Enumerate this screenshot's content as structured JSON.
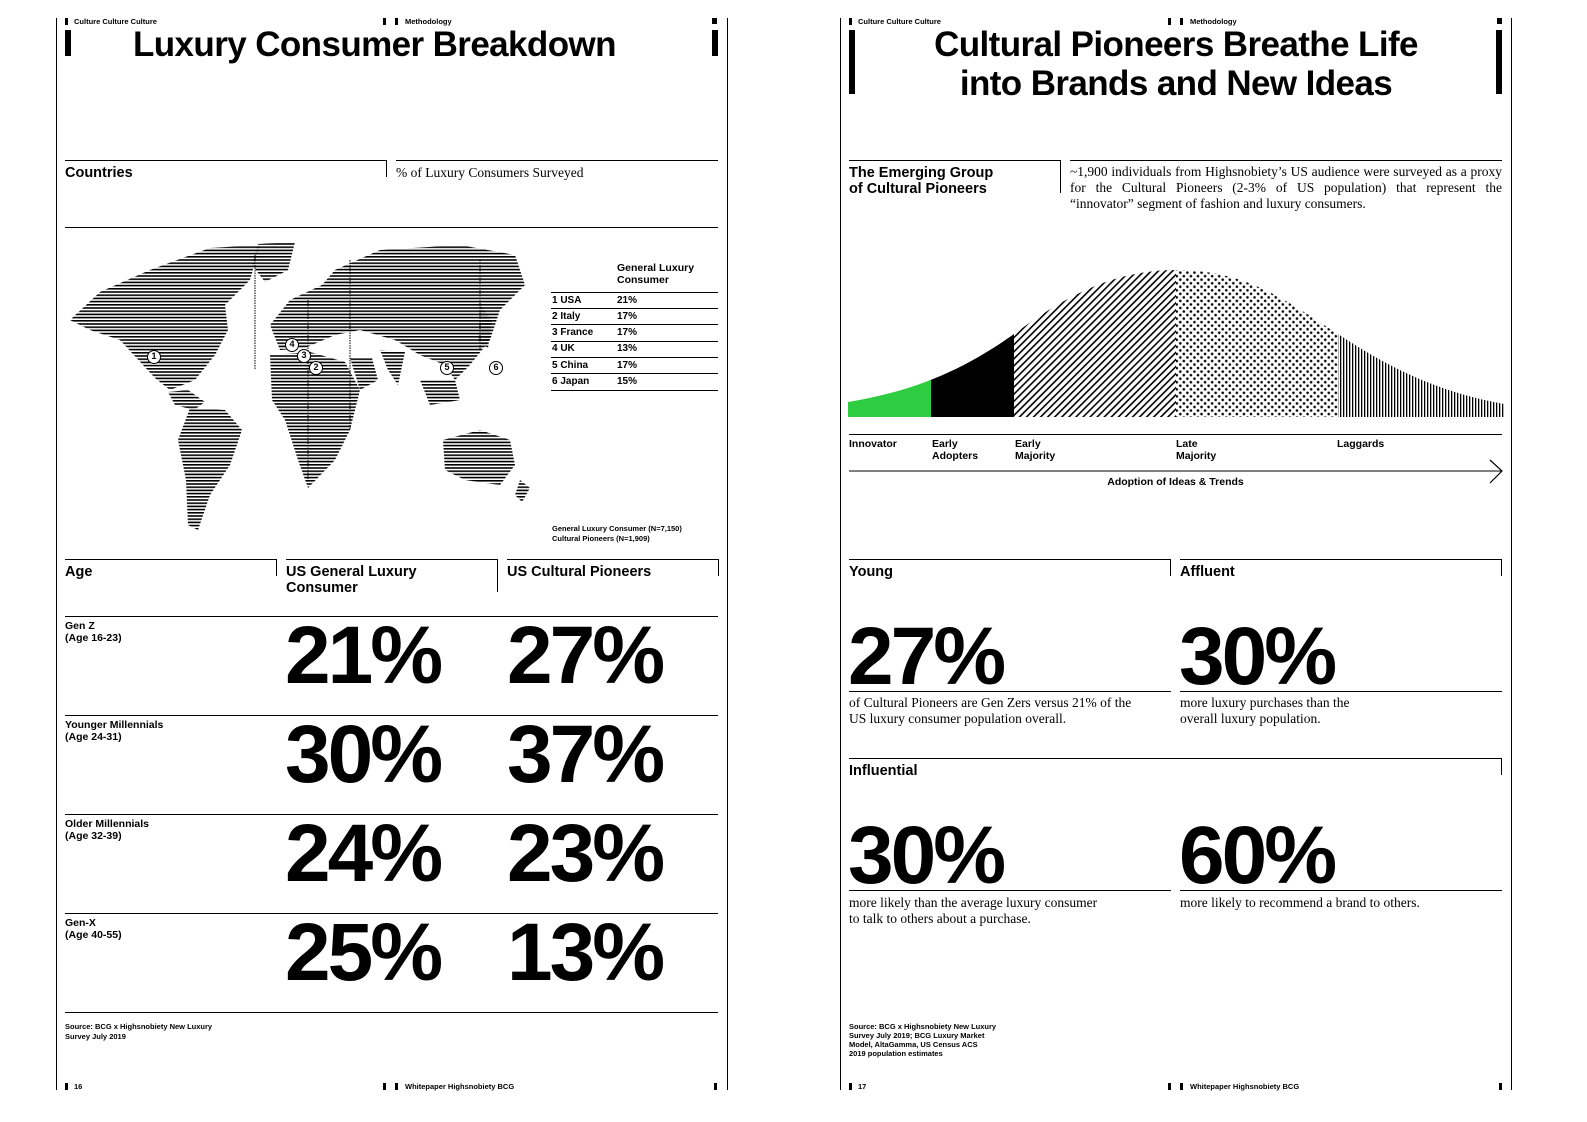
{
  "left": {
    "header": {
      "section": "Culture Culture Culture",
      "category": "Methodology",
      "title": "Luxury Consumer Breakdown"
    },
    "countries": {
      "heading": "Countries",
      "subheading": "% of Luxury Consumers Surveyed",
      "table_header": "General Luxury Consumer",
      "rows": [
        {
          "country": "1 USA",
          "value": "21%"
        },
        {
          "country": "2 Italy",
          "value": "17%"
        },
        {
          "country": "3 France",
          "value": "17%"
        },
        {
          "country": "4 UK",
          "value": "13%"
        },
        {
          "country": "5 China",
          "value": "17%"
        },
        {
          "country": "6 Japan",
          "value": "15%"
        }
      ],
      "markers": [
        "1",
        "2",
        "3",
        "4",
        "5",
        "6"
      ],
      "sample_note_1": "General Luxury Consumer (N=7,150)",
      "sample_note_2": "Cultural Pioneers (N=1,909)"
    },
    "age": {
      "heading": "Age",
      "col1": "US General Luxury Consumer",
      "col2": "US Cultural Pioneers",
      "rows": [
        {
          "name": "Gen Z",
          "range": "(Age 16-23)",
          "general": "21%",
          "pioneers": "27%"
        },
        {
          "name": "Younger Millennials",
          "range": "(Age 24-31)",
          "general": "30%",
          "pioneers": "37%"
        },
        {
          "name": "Older Millennials",
          "range": "(Age 32-39)",
          "general": "24%",
          "pioneers": "23%"
        },
        {
          "name": "Gen-X",
          "range": "(Age 40-55)",
          "general": "25%",
          "pioneers": "13%"
        }
      ]
    },
    "source_1": "Source: BCG x Highsnobiety New Luxury",
    "source_2": "Survey July 2019",
    "footer": {
      "page": "16",
      "publication": "Whitepaper Highsnobiety BCG"
    }
  },
  "right": {
    "header": {
      "section": "Culture Culture Culture",
      "category": "Methodology",
      "title_1": "Cultural Pioneers Breathe Life",
      "title_2": "into Brands and New Ideas"
    },
    "intro": {
      "heading_1": "The Emerging Group",
      "heading_2": "of Cultural Pioneers",
      "text": "~1,900 individuals from Highsnobiety’s US audience were surveyed as a proxy for the Cultural Pioneers (2-3% of US population) that represent the “innovator” segment of fashion and luxury consumers."
    },
    "adoption_curve": {
      "colors": {
        "innovator": "#2ecc40",
        "early_adopters": "#000000"
      },
      "segments": [
        {
          "label_1": "Innovator",
          "label_2": ""
        },
        {
          "label_1": "Early",
          "label_2": "Adopters"
        },
        {
          "label_1": "Early",
          "label_2": "Majority"
        },
        {
          "label_1": "Late",
          "label_2": "Majority"
        },
        {
          "label_1": "Laggards",
          "label_2": ""
        }
      ],
      "axis_label": "Adoption of Ideas & Trends"
    },
    "young": {
      "heading": "Young",
      "value": "27%",
      "text_1": "of Cultural Pioneers are Gen Zers versus 21% of the",
      "text_2": "US luxury consumer population overall."
    },
    "affluent": {
      "heading": "Affluent",
      "value": "30%",
      "text_1": "more luxury purchases than the",
      "text_2": "overall luxury population."
    },
    "influential": {
      "heading": "Influential",
      "stat1": {
        "value": "30%",
        "text_1": "more likely than the average luxury consumer",
        "text_2": "to talk to others about a purchase."
      },
      "stat2": {
        "value": "60%",
        "text_1": "more likely to recommend a brand to others.",
        "text_2": ""
      }
    },
    "source": [
      "Source: BCG x Highsnobiety New Luxury",
      "Survey July 2019; BCG Luxury Market",
      "Model, AltaGamma, US Census ACS",
      "2019 population estimates"
    ],
    "footer": {
      "page": "17",
      "publication": "Whitepaper Highsnobiety BCG"
    }
  }
}
